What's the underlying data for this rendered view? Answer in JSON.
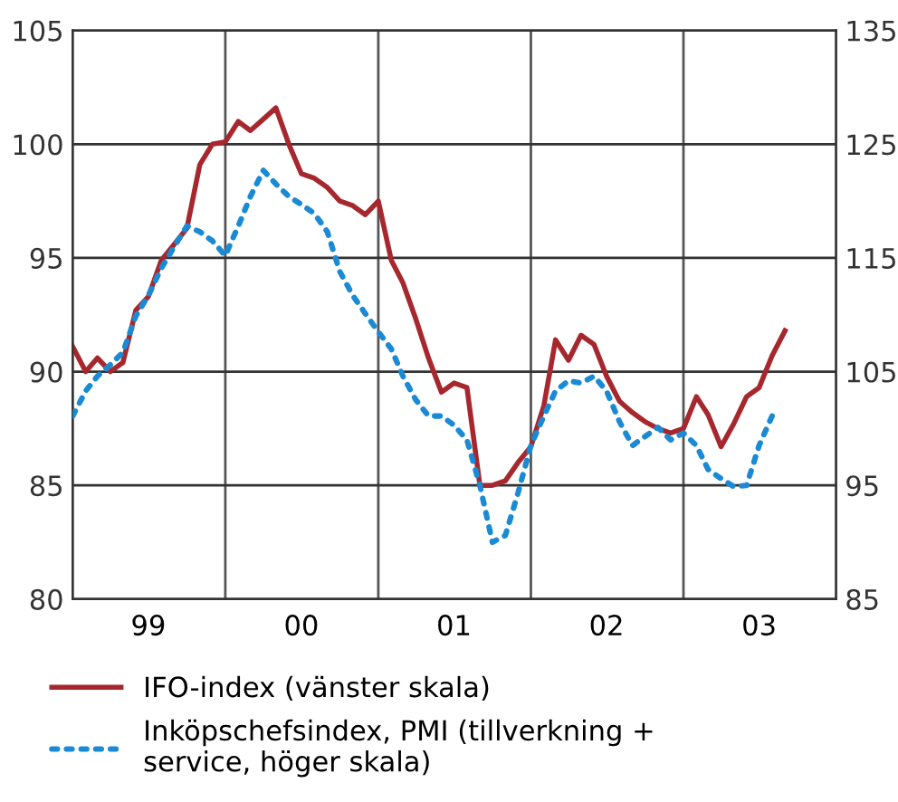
{
  "chart_data": {
    "type": "line",
    "x": [
      "1999-01",
      "1999-02",
      "1999-03",
      "1999-04",
      "1999-05",
      "1999-06",
      "1999-07",
      "1999-08",
      "1999-09",
      "1999-10",
      "1999-11",
      "1999-12",
      "2000-01",
      "2000-02",
      "2000-03",
      "2000-04",
      "2000-05",
      "2000-06",
      "2000-07",
      "2000-08",
      "2000-09",
      "2000-10",
      "2000-11",
      "2000-12",
      "2001-01",
      "2001-02",
      "2001-03",
      "2001-04",
      "2001-05",
      "2001-06",
      "2001-07",
      "2001-08",
      "2001-09",
      "2001-10",
      "2001-11",
      "2001-12",
      "2002-01",
      "2002-02",
      "2002-03",
      "2002-04",
      "2002-05",
      "2002-06",
      "2002-07",
      "2002-08",
      "2002-09",
      "2002-10",
      "2002-11",
      "2002-12",
      "2003-01",
      "2003-02",
      "2003-03",
      "2003-04",
      "2003-05",
      "2003-06",
      "2003-07",
      "2003-08",
      "2003-09"
    ],
    "series": [
      {
        "name": "IFO-index (vänster skala)",
        "color": "#a6282e",
        "line_style": "solid",
        "values": [
          91.1,
          90.0,
          90.6,
          90.0,
          90.4,
          92.7,
          93.3,
          94.9,
          95.6,
          96.3,
          99.1,
          100.0,
          100.1,
          101.0,
          100.6,
          101.1,
          101.6,
          100.0,
          98.7,
          98.5,
          98.1,
          97.5,
          97.3,
          96.9,
          97.5,
          94.9,
          93.9,
          92.3,
          90.6,
          89.1,
          89.5,
          89.3,
          85.0,
          85.0,
          85.2,
          86.0,
          86.7,
          88.5,
          91.4,
          90.5,
          91.6,
          91.2,
          89.8,
          88.7,
          88.2,
          87.8,
          87.5,
          87.3,
          87.5,
          88.9,
          88.1,
          86.7,
          87.7,
          88.9,
          89.3,
          90.7,
          91.8
        ]
      },
      {
        "name": "Inköpschefsindex, PMI (tillverkning +\nservice, höger skala)",
        "color": "#1a8ad4",
        "line_style": "dotted",
        "axis": "y2",
        "values": [
          101.1,
          103.3,
          104.6,
          105.6,
          106.7,
          109.9,
          111.7,
          114.1,
          116.0,
          117.8,
          117.3,
          116.5,
          115.2,
          117.8,
          120.4,
          122.7,
          121.5,
          120.4,
          119.7,
          118.9,
          117.3,
          113.8,
          111.7,
          110.1,
          108.5,
          107.0,
          104.6,
          102.5,
          101.1,
          101.1,
          100.3,
          99.0,
          95.0,
          90.0,
          90.6,
          94.3,
          98.5,
          101.1,
          103.3,
          104.2,
          104.0,
          104.6,
          103.3,
          100.6,
          98.5,
          99.3,
          100.1,
          99.0,
          99.6,
          98.5,
          96.4,
          95.6,
          94.9,
          95.0,
          98.5,
          101.1,
          null
        ]
      }
    ],
    "xlim": [
      "1999-01",
      "2004-01"
    ],
    "xticks": [
      {
        "value": "1999-07",
        "label": "99"
      },
      {
        "value": "2000-01",
        "label": null
      },
      {
        "value": "2000-07",
        "label": "00"
      },
      {
        "value": "2001-01",
        "label": null
      },
      {
        "value": "2001-07",
        "label": "01"
      },
      {
        "value": "2002-01",
        "label": null
      },
      {
        "value": "2002-07",
        "label": "02"
      },
      {
        "value": "2003-01",
        "label": null
      },
      {
        "value": "2003-07",
        "label": "03"
      }
    ],
    "ylim": [
      80,
      105
    ],
    "yticks": [
      80,
      85,
      90,
      95,
      100,
      105
    ],
    "y2lim": [
      85,
      135
    ],
    "y2ticks": [
      85,
      95,
      105,
      115,
      125,
      135
    ],
    "grid": true,
    "legend": "bottom"
  }
}
